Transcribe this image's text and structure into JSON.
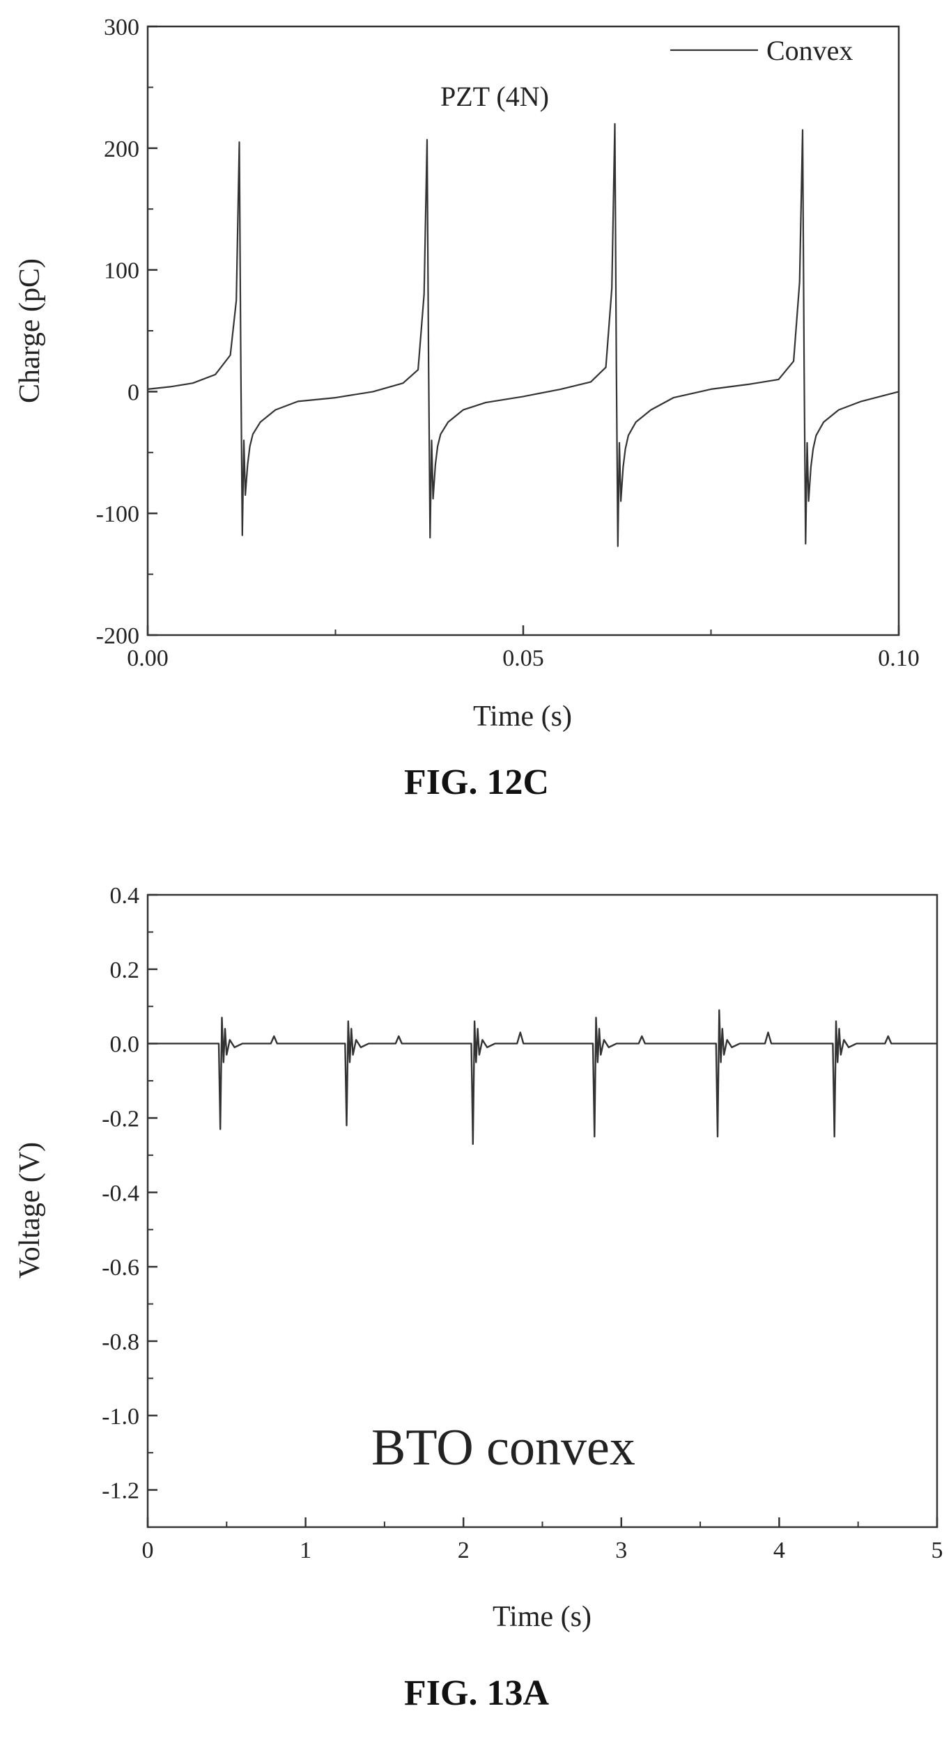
{
  "chart_data": [
    {
      "type": "line",
      "figure_caption": "FIG. 12C",
      "title": "",
      "annotation": "PZT (4N)",
      "xlabel": "Time (s)",
      "ylabel": "Charge (pC)",
      "xlim": [
        0.0,
        0.1
      ],
      "ylim": [
        -200,
        300
      ],
      "x_ticks": [
        0.0,
        0.05,
        0.1
      ],
      "x_tick_labels": [
        "0.00",
        "0.05",
        "0.10"
      ],
      "y_ticks": [
        -200,
        -100,
        0,
        100,
        200,
        300
      ],
      "y_tick_labels": [
        "-200",
        "-100",
        "0",
        "100",
        "200",
        "300"
      ],
      "grid": false,
      "legend_position": "top-right",
      "series": [
        {
          "name": "Convex",
          "x": [
            0.0,
            0.003,
            0.006,
            0.009,
            0.011,
            0.0118,
            0.0122,
            0.0124,
            0.0126,
            0.0128,
            0.013,
            0.0133,
            0.0136,
            0.014,
            0.015,
            0.017,
            0.02,
            0.025,
            0.03,
            0.034,
            0.036,
            0.0368,
            0.0372,
            0.0374,
            0.0376,
            0.0378,
            0.038,
            0.0383,
            0.0386,
            0.039,
            0.04,
            0.042,
            0.045,
            0.05,
            0.055,
            0.059,
            0.061,
            0.0618,
            0.0622,
            0.0624,
            0.0626,
            0.0628,
            0.063,
            0.0633,
            0.0636,
            0.064,
            0.065,
            0.067,
            0.07,
            0.075,
            0.08,
            0.084,
            0.086,
            0.0868,
            0.0872,
            0.0874,
            0.0876,
            0.0878,
            0.088,
            0.0883,
            0.0886,
            0.089,
            0.09,
            0.092,
            0.095,
            0.1
          ],
          "y": [
            2,
            4,
            7,
            14,
            30,
            75,
            205,
            20,
            -118,
            -40,
            -85,
            -60,
            -45,
            -35,
            -25,
            -15,
            -8,
            -5,
            0,
            7,
            18,
            80,
            207,
            20,
            -120,
            -40,
            -88,
            -60,
            -45,
            -35,
            -25,
            -15,
            -9,
            -4,
            2,
            8,
            20,
            85,
            220,
            20,
            -127,
            -42,
            -90,
            -62,
            -47,
            -36,
            -25,
            -15,
            -5,
            2,
            6,
            10,
            25,
            90,
            215,
            20,
            -125,
            -42,
            -90,
            -62,
            -47,
            -36,
            -25,
            -15,
            -8,
            0
          ]
        }
      ]
    },
    {
      "type": "line",
      "figure_caption": "FIG. 13A",
      "title": "",
      "annotation": "BTO convex",
      "xlabel": "Time (s)",
      "ylabel": "Voltage (V)",
      "xlim": [
        0,
        5
      ],
      "ylim": [
        -1.3,
        0.4
      ],
      "x_ticks": [
        0,
        1,
        2,
        3,
        4,
        5
      ],
      "x_tick_labels": [
        "0",
        "1",
        "2",
        "3",
        "4",
        "5"
      ],
      "y_ticks": [
        0.4,
        0.2,
        0.0,
        -0.2,
        -0.4,
        -0.6,
        -0.8,
        -1.0,
        -1.2
      ],
      "y_tick_labels": [
        "0.4",
        "0.2",
        "0.0",
        "-0.2",
        "-0.4",
        "-0.6",
        "-0.8",
        "-1.0",
        "-1.2"
      ],
      "grid": false,
      "legend_position": "none",
      "series": [
        {
          "name": "",
          "x": [
            0.0,
            0.45,
            0.46,
            0.47,
            0.48,
            0.49,
            0.5,
            0.52,
            0.55,
            0.6,
            0.78,
            0.8,
            0.82,
            1.25,
            1.26,
            1.27,
            1.28,
            1.29,
            1.3,
            1.32,
            1.35,
            1.4,
            1.57,
            1.59,
            1.61,
            2.05,
            2.06,
            2.07,
            2.08,
            2.09,
            2.1,
            2.12,
            2.15,
            2.2,
            2.34,
            2.36,
            2.38,
            2.82,
            2.83,
            2.84,
            2.85,
            2.86,
            2.87,
            2.89,
            2.92,
            2.97,
            3.11,
            3.13,
            3.15,
            3.6,
            3.61,
            3.62,
            3.63,
            3.64,
            3.65,
            3.67,
            3.7,
            3.75,
            3.91,
            3.93,
            3.95,
            4.34,
            4.35,
            4.36,
            4.37,
            4.38,
            4.39,
            4.41,
            4.44,
            4.49,
            4.67,
            4.69,
            4.71,
            5.0
          ],
          "y": [
            0.0,
            0.0,
            -0.23,
            0.07,
            -0.05,
            0.04,
            -0.03,
            0.01,
            -0.01,
            0.0,
            0.0,
            0.02,
            0.0,
            0.0,
            -0.22,
            0.06,
            -0.05,
            0.04,
            -0.03,
            0.01,
            -0.01,
            0.0,
            0.0,
            0.02,
            0.0,
            0.0,
            -0.27,
            0.06,
            -0.05,
            0.04,
            -0.03,
            0.01,
            -0.01,
            0.0,
            0.0,
            0.03,
            0.0,
            0.0,
            -0.25,
            0.07,
            -0.05,
            0.04,
            -0.03,
            0.01,
            -0.01,
            0.0,
            0.0,
            0.02,
            0.0,
            0.0,
            -0.25,
            0.09,
            -0.05,
            0.04,
            -0.03,
            0.01,
            -0.01,
            0.0,
            0.0,
            0.03,
            0.0,
            0.0,
            -0.25,
            0.06,
            -0.05,
            0.04,
            -0.03,
            0.01,
            -0.01,
            0.0,
            0.0,
            0.02,
            0.0,
            0.0
          ]
        }
      ]
    }
  ]
}
